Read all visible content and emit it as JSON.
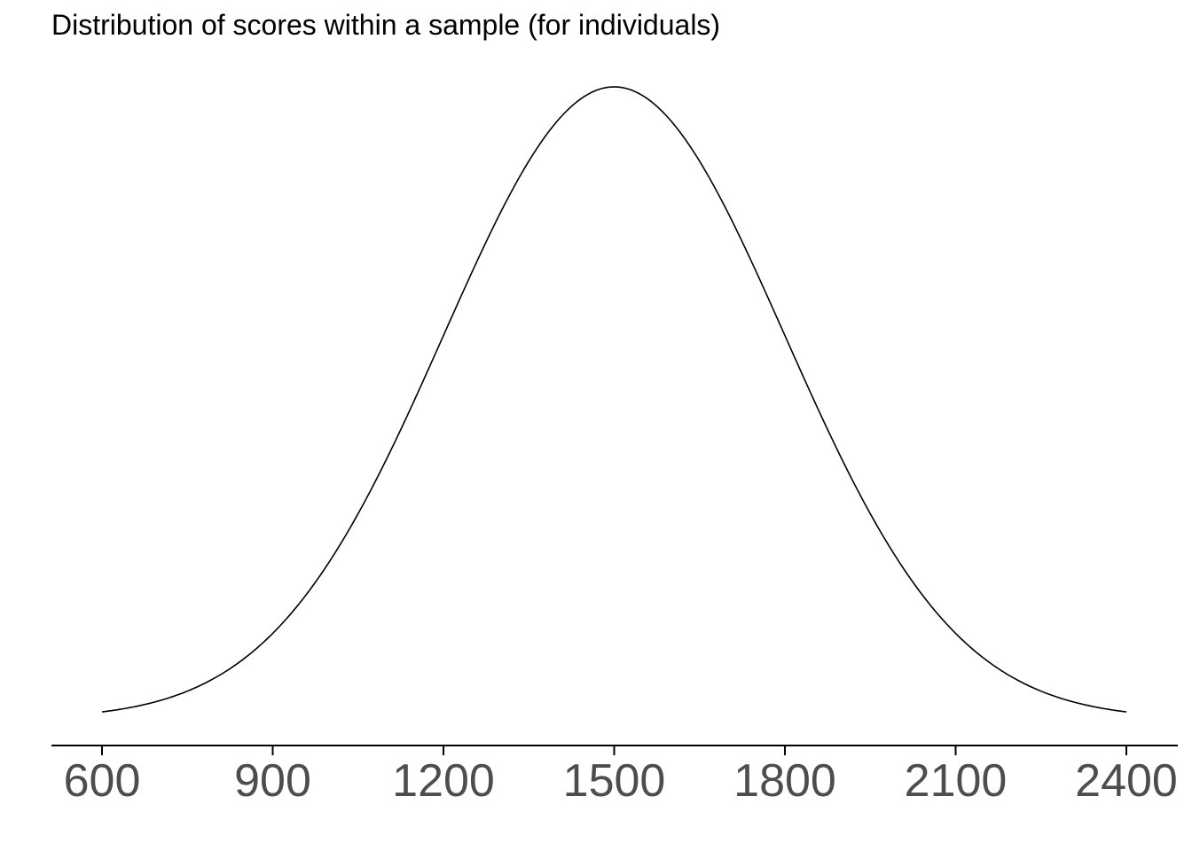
{
  "chart_data": {
    "type": "line",
    "title": "Distribution of scores within a sample (for individuals)",
    "subtitle": "",
    "xlabel": "",
    "ylabel": "",
    "distribution": "normal",
    "mean": 1500,
    "sd": 300,
    "xlim": [
      600,
      2400
    ],
    "x_ticks": [
      600,
      900,
      1200,
      1500,
      1800,
      2100,
      2400
    ],
    "x_tick_labels": [
      "600",
      "900",
      "1200",
      "1500",
      "1800",
      "2100",
      "2400"
    ],
    "y_axis_shown": false,
    "grid": false,
    "legend": "none",
    "colors": {
      "line": "#000000",
      "axis": "#000000",
      "tick_text": "#4d4d4d",
      "background": "#ffffff"
    }
  }
}
